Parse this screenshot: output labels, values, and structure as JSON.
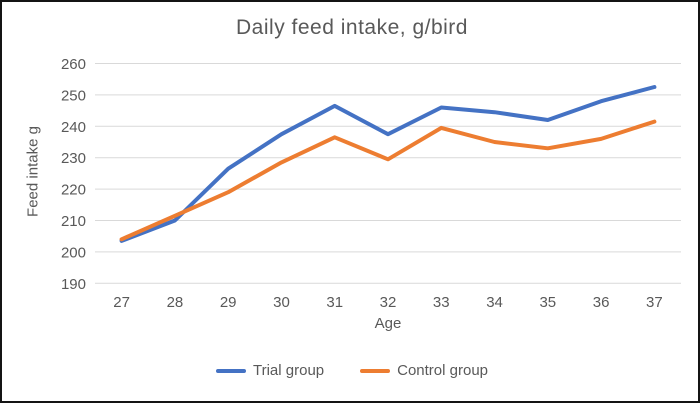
{
  "chart_data": {
    "type": "line",
    "title": "Daily feed intake, g/bird",
    "xlabel": "Age",
    "ylabel": "Feed intake g",
    "categories": [
      27,
      28,
      29,
      30,
      31,
      32,
      33,
      34,
      35,
      36,
      37
    ],
    "series": [
      {
        "name": "Trial group",
        "color": "#4472C4",
        "values": [
          203.5,
          210,
          226.5,
          237.5,
          246.5,
          237.5,
          246,
          244.5,
          242,
          248,
          252.5
        ]
      },
      {
        "name": "Control group",
        "color": "#ED7D31",
        "values": [
          204,
          211.5,
          219,
          228.5,
          236.5,
          229.5,
          239.5,
          235,
          233,
          236,
          241.5
        ]
      }
    ],
    "ylim": [
      190,
      260
    ],
    "ytick_step": 10,
    "yticks": [
      "260",
      "250",
      "240",
      "230",
      "220",
      "210",
      "200",
      "190"
    ],
    "grid": true,
    "legend_position": "bottom"
  },
  "colors": {
    "background": "#FFFFFF",
    "border": "#141414",
    "text": "#595959",
    "gridline": "#D9D9D9",
    "trial_line": "#4472C4",
    "control_line": "#ED7D31"
  }
}
